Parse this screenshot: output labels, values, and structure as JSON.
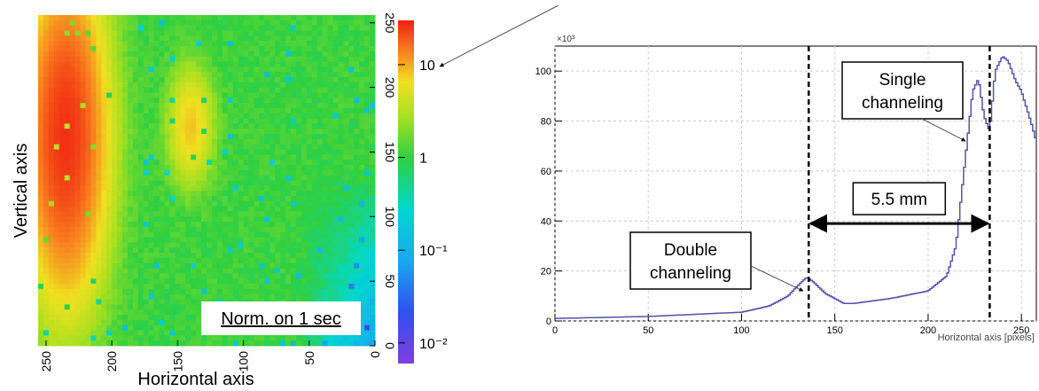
{
  "chart_data": [
    {
      "type": "heatmap",
      "xlabel": "Horizontal axis",
      "ylabel": "Vertical axis",
      "x_ticks": [
        "250",
        "200",
        "150",
        "100",
        "50",
        "0"
      ],
      "y_ticks": [
        "250",
        "200",
        "150",
        "100",
        "50",
        "0"
      ],
      "xlim": [
        0,
        256
      ],
      "ylim": [
        0,
        256
      ],
      "x_reversed": true,
      "colorbar": {
        "scale": "log",
        "range": [
          0.006,
          30
        ],
        "ticks": [
          {
            "value": 10,
            "label": "10"
          },
          {
            "value": 1,
            "label": "1"
          },
          {
            "value": 0.1,
            "label": "10⁻¹"
          },
          {
            "value": 0.01,
            "label": "10⁻²"
          }
        ]
      },
      "blobs": [
        {
          "x": 235,
          "y": 162,
          "sx": 18,
          "sy": 72,
          "peak": 25
        },
        {
          "x": 140,
          "y": 170,
          "sx": 10,
          "sy": 26,
          "peak": 7
        }
      ],
      "background_level": 1.1,
      "annotation": "Norm. on 1 sec"
    },
    {
      "type": "line",
      "xlabel": "Horizontal axis [pixels]",
      "ylabel": "",
      "y_multiplier": "×10³",
      "xlim": [
        0,
        258
      ],
      "ylim": [
        0,
        110
      ],
      "x_ticks": [
        0,
        50,
        100,
        150,
        200,
        250
      ],
      "y_ticks": [
        0,
        20,
        40,
        60,
        80,
        100
      ],
      "grid": true,
      "series": [
        {
          "x": [
            0,
            50,
            100,
            115,
            125,
            130,
            135,
            138,
            145,
            155,
            160,
            180,
            200,
            210,
            215,
            220,
            224,
            227,
            230,
            233,
            236,
            240,
            243,
            247,
            250,
            255,
            258
          ],
          "y": [
            1,
            1.8,
            3.5,
            6,
            10,
            14,
            17.5,
            16,
            11,
            7,
            7,
            9,
            12,
            18,
            30,
            65,
            92,
            97,
            82,
            76,
            100,
            106,
            104,
            96,
            92,
            80,
            72
          ]
        }
      ],
      "vlines": [
        136,
        233
      ],
      "measurement": {
        "from": 136,
        "to": 233,
        "y": 39,
        "label": "5.5 mm"
      },
      "annotations": [
        {
          "lines": [
            "Double",
            "channeling"
          ],
          "target_x": 133,
          "target_y": 10
        },
        {
          "lines": [
            "Single",
            "channeling"
          ],
          "target_x": 220,
          "target_y": 70
        }
      ],
      "line_color": "#5555aa"
    }
  ]
}
